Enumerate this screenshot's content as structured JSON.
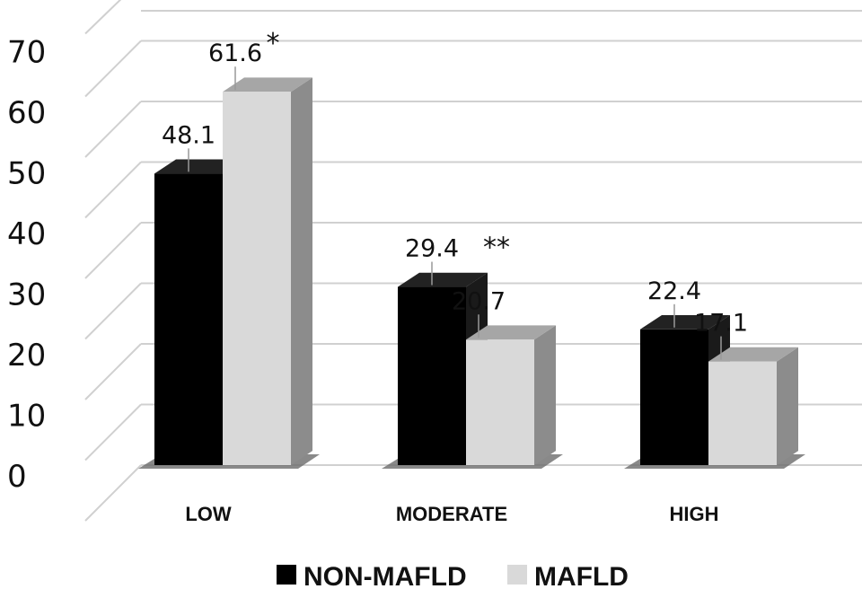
{
  "chart_data": {
    "type": "bar",
    "categories": [
      "LOW",
      "MODERATE",
      "HIGH"
    ],
    "series": [
      {
        "name": "NON-MAFLD",
        "values": [
          48.1,
          29.4,
          22.4
        ],
        "color": "#000000"
      },
      {
        "name": "MAFLD",
        "values": [
          61.6,
          20.7,
          17.1
        ],
        "color": "#d9d9d9"
      }
    ],
    "ylim": [
      0,
      70
    ],
    "yticks": [
      0,
      10,
      20,
      30,
      40,
      50,
      60,
      70
    ],
    "grid": true,
    "legend": "bottom",
    "annotations": [
      {
        "text": "*",
        "category": "LOW",
        "series": "MAFLD"
      },
      {
        "text": "**",
        "category": "MODERATE",
        "series": "between"
      }
    ]
  }
}
